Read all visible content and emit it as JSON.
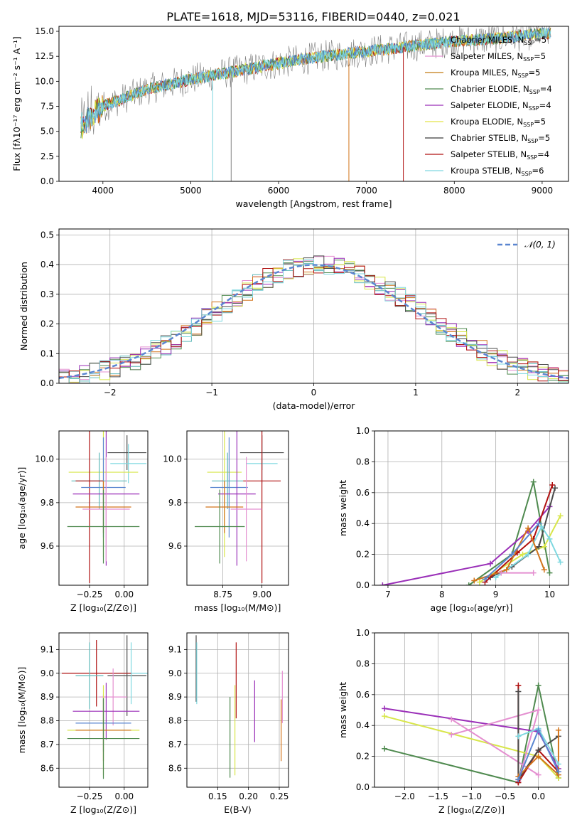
{
  "figure_title": "PLATE=1618, MJD=53116, FIBERID=0440, z=0.021",
  "legend_spectrum": [
    {
      "label": "Chabrier MILES, N",
      "sub": "SSP",
      "tail": "=5",
      "color": "#5fb9b9"
    },
    {
      "label": "Salpeter MILES, N",
      "sub": "SSP",
      "tail": "=5",
      "color": "#e48fd0"
    },
    {
      "label": "Kroupa MILES, N",
      "sub": "SSP",
      "tail": "=5",
      "color": "#c27a10"
    },
    {
      "label": "Chabrier ELODIE, N",
      "sub": "SSP",
      "tail": "=4",
      "color": "#4f8a4f"
    },
    {
      "label": "Salpeter ELODIE, N",
      "sub": "SSP",
      "tail": "=4",
      "color": "#9a2fb8"
    },
    {
      "label": "Kroupa ELODIE, N",
      "sub": "SSP",
      "tail": "=5",
      "color": "#e3e347"
    },
    {
      "label": "Chabrier STELIB, N",
      "sub": "SSP",
      "tail": "=5",
      "color": "#3a3a3a"
    },
    {
      "label": "Salpeter STELIB, N",
      "sub": "SSP",
      "tail": "=4",
      "color": "#b01010"
    },
    {
      "label": "Kroupa STELIB, N",
      "sub": "SSP",
      "tail": "=6",
      "color": "#7fd8e0"
    }
  ],
  "colors": [
    "#5fb9b9",
    "#e48fd0",
    "#d2741a",
    "#4f8a4f",
    "#9a2fb8",
    "#d8e64a",
    "#4a4a4a",
    "#b01010",
    "#7fd8e0",
    "#5a86d0"
  ],
  "chart_data": [
    {
      "id": "spectrum",
      "type": "line",
      "xlabel": "wavelength [Angstrom, rest frame]",
      "ylabel": "Flux [fλ10⁻¹⁷ erg cm⁻² s⁻¹ A⁻¹]",
      "xlim": [
        3500,
        9300
      ],
      "ylim": [
        0,
        15.5
      ],
      "xticks": [
        4000,
        5000,
        6000,
        7000,
        8000,
        9000
      ],
      "yticks": [
        0.0,
        2.5,
        5.0,
        7.5,
        10.0,
        12.5,
        15.0
      ],
      "trend_x": [
        3750,
        4000,
        4500,
        5000,
        5500,
        6000,
        6500,
        7000,
        7500,
        8000,
        8500,
        9000
      ],
      "trend_y": [
        5.5,
        7.5,
        9.2,
        10.2,
        11.0,
        11.8,
        12.5,
        13.0,
        13.5,
        14.0,
        14.3,
        14.8
      ],
      "grid": false
    },
    {
      "id": "residuals",
      "type": "histogram",
      "xlabel": "(data-model)/error",
      "ylabel": "Normed distribution",
      "xlim": [
        -2.5,
        2.5
      ],
      "ylim": [
        0,
        0.52
      ],
      "xticks": [
        -2,
        -1,
        0,
        1,
        2
      ],
      "yticks": [
        0.0,
        0.1,
        0.2,
        0.3,
        0.4,
        0.5
      ],
      "legend": "𝒩(0, 1)",
      "grid": true
    },
    {
      "id": "age_vs_Z",
      "type": "errorbar",
      "xlabel": "Z [log₁₀(Z/Z⊙)]",
      "ylabel": "age  [log₁₀(age/yr)]",
      "xlim": [
        -0.47,
        0.17
      ],
      "ylim": [
        9.42,
        10.13
      ],
      "xticks": [
        -0.25,
        0.0
      ],
      "xticklabels": [
        "−0.25",
        "0.00"
      ],
      "yticks": [
        9.6,
        9.8,
        10.0
      ],
      "points": [
        {
          "x": 0.02,
          "xe": 0.14,
          "y": 10.03,
          "ye": 0.08,
          "c": 6
        },
        {
          "x": 0.03,
          "xe": 0.13,
          "y": 9.98,
          "ye": 0.09,
          "c": 8
        },
        {
          "x": -0.15,
          "xe": 0.25,
          "y": 9.94,
          "ye": 0.39,
          "c": 5
        },
        {
          "x": -0.18,
          "xe": 0.2,
          "y": 9.9,
          "ye": 0.13,
          "c": 0
        },
        {
          "x": -0.25,
          "xe": 0.1,
          "y": 9.9,
          "ye": 0.47,
          "c": 7
        },
        {
          "x": -0.15,
          "xe": 0.16,
          "y": 9.87,
          "ye": 0.23,
          "c": 9
        },
        {
          "x": -0.13,
          "xe": 0.24,
          "y": 9.84,
          "ye": 0.33,
          "c": 4
        },
        {
          "x": -0.15,
          "xe": 0.2,
          "y": 9.78,
          "ye": 0.12,
          "c": 2
        },
        {
          "x": -0.13,
          "xe": 0.17,
          "y": 9.77,
          "ye": 0.24,
          "c": 1
        },
        {
          "x": -0.15,
          "xe": 0.26,
          "y": 9.69,
          "ye": 0.17,
          "c": 3
        }
      ]
    },
    {
      "id": "age_vs_mass",
      "type": "errorbar",
      "xlabel": "mass [log₁₀(M/M⊙)]",
      "ylabel": "",
      "xlim": [
        8.52,
        9.17
      ],
      "ylim": [
        9.42,
        10.13
      ],
      "xticks": [
        8.75,
        9.0
      ],
      "xticklabels": [
        "8.75",
        "9.00"
      ],
      "yticks": [
        9.6,
        9.8,
        10.0
      ],
      "points": [
        {
          "x": 9.0,
          "xe": 0.14,
          "y": 10.03,
          "ye": 0.08,
          "c": 6
        },
        {
          "x": 9.0,
          "xe": 0.1,
          "y": 9.98,
          "ye": 0.09,
          "c": 8
        },
        {
          "x": 8.76,
          "xe": 0.11,
          "y": 9.94,
          "ye": 0.39,
          "c": 5
        },
        {
          "x": 8.78,
          "xe": 0.1,
          "y": 9.9,
          "ye": 0.13,
          "c": 0
        },
        {
          "x": 9.0,
          "xe": 0.12,
          "y": 9.9,
          "ye": 0.47,
          "c": 7
        },
        {
          "x": 8.79,
          "xe": 0.12,
          "y": 9.87,
          "ye": 0.23,
          "c": 9
        },
        {
          "x": 8.84,
          "xe": 0.12,
          "y": 9.84,
          "ye": 0.33,
          "c": 4
        },
        {
          "x": 8.76,
          "xe": 0.12,
          "y": 9.78,
          "ye": 0.12,
          "c": 2
        },
        {
          "x": 8.9,
          "xe": 0.1,
          "y": 9.77,
          "ye": 0.24,
          "c": 1
        },
        {
          "x": 8.73,
          "xe": 0.16,
          "y": 9.69,
          "ye": 0.17,
          "c": 3
        }
      ]
    },
    {
      "id": "weight_vs_age",
      "type": "line",
      "xlabel": "age  [log₁₀(age/yr)]",
      "ylabel": "mass weight",
      "xlim": [
        6.75,
        10.35
      ],
      "ylim": [
        0,
        1.0
      ],
      "xticks": [
        7,
        8,
        9,
        10
      ],
      "yticks": [
        0.0,
        0.2,
        0.4,
        0.6,
        0.8,
        1.0
      ],
      "series": [
        {
          "c": 3,
          "x": [
            8.5,
            9.3,
            9.7,
            10.0
          ],
          "y": [
            0.0,
            0.2,
            0.67,
            0.08
          ]
        },
        {
          "c": 4,
          "x": [
            6.9,
            8.9,
            9.6,
            10.0
          ],
          "y": [
            0.0,
            0.14,
            0.35,
            0.51
          ]
        },
        {
          "c": 5,
          "x": [
            8.7,
            9.5,
            9.9,
            10.2
          ],
          "y": [
            0.02,
            0.2,
            0.25,
            0.45
          ]
        },
        {
          "c": 6,
          "x": [
            8.9,
            9.3,
            9.8,
            10.1
          ],
          "y": [
            0.05,
            0.12,
            0.25,
            0.63
          ]
        },
        {
          "c": 7,
          "x": [
            8.8,
            9.4,
            9.7,
            10.05
          ],
          "y": [
            0.02,
            0.21,
            0.3,
            0.65
          ]
        },
        {
          "c": 8,
          "x": [
            9.0,
            9.6,
            9.85,
            10.0,
            10.2
          ],
          "y": [
            0.05,
            0.2,
            0.38,
            0.3,
            0.15
          ]
        },
        {
          "c": 2,
          "x": [
            8.6,
            9.2,
            9.6,
            9.9
          ],
          "y": [
            0.03,
            0.1,
            0.37,
            0.1
          ]
        },
        {
          "c": 1,
          "x": [
            9.1,
            9.7
          ],
          "y": [
            0.08,
            0.08
          ]
        },
        {
          "c": 9,
          "x": [
            8.8,
            9.3,
            9.8
          ],
          "y": [
            0.04,
            0.2,
            0.4
          ]
        }
      ]
    },
    {
      "id": "mass_vs_Z",
      "type": "errorbar",
      "xlabel": "Z [log₁₀(Z/Z⊙)]",
      "ylabel": "mass [log₁₀(M/M⊙)]",
      "xlim": [
        -0.47,
        0.17
      ],
      "ylim": [
        8.52,
        9.17
      ],
      "xticks": [
        -0.25,
        0.0
      ],
      "xticklabels": [
        "−0.25",
        "0.00"
      ],
      "yticks": [
        8.6,
        8.7,
        8.8,
        8.9,
        9.0,
        9.1
      ],
      "points": [
        {
          "x": 0.02,
          "xe": 0.14,
          "y": 8.99,
          "ye": 0.17,
          "c": 6
        },
        {
          "x": 0.05,
          "xe": 0.13,
          "y": 9.0,
          "ye": 0.13,
          "c": 8
        },
        {
          "x": -0.2,
          "xe": 0.25,
          "y": 9.0,
          "ye": 0.14,
          "c": 7
        },
        {
          "x": -0.08,
          "xe": 0.1,
          "y": 8.9,
          "ye": 0.12,
          "c": 1
        },
        {
          "x": -0.13,
          "xe": 0.24,
          "y": 8.84,
          "ye": 0.12,
          "c": 4
        },
        {
          "x": -0.15,
          "xe": 0.2,
          "y": 8.79,
          "ye": 0.12,
          "c": 9
        },
        {
          "x": -0.15,
          "xe": 0.26,
          "y": 8.76,
          "ye": 0.19,
          "c": 5
        },
        {
          "x": -0.15,
          "xe": 0.2,
          "y": 8.76,
          "ye": 0.13,
          "c": 2
        },
        {
          "x": -0.15,
          "xe": 0.26,
          "y": 8.725,
          "ye": 0.17,
          "c": 3
        },
        {
          "x": -0.25,
          "xe": 0.1,
          "y": 8.99,
          "ye": 0.14,
          "c": 0
        }
      ]
    },
    {
      "id": "mass_vs_ebv",
      "type": "errorbar",
      "xlabel": "E(B-V)",
      "ylabel": "",
      "xlim": [
        0.1,
        0.265
      ],
      "ylim": [
        8.52,
        9.17
      ],
      "xticks": [
        0.15,
        0.2,
        0.25
      ],
      "xticklabels": [
        "0.15",
        "0.20",
        "0.25"
      ],
      "yticks": [
        8.6,
        8.7,
        8.8,
        8.9,
        9.0,
        9.1
      ],
      "points": [
        {
          "x": 0.115,
          "xe": 0,
          "y": 9.02,
          "ye": 0.14,
          "c": 6
        },
        {
          "x": 0.116,
          "xe": 0,
          "y": 9.0,
          "ye": 0.13,
          "c": 8
        },
        {
          "x": 0.17,
          "xe": 0,
          "y": 8.73,
          "ye": 0.17,
          "c": 3
        },
        {
          "x": 0.178,
          "xe": 0,
          "y": 8.76,
          "ye": 0.19,
          "c": 5
        },
        {
          "x": 0.18,
          "xe": 0,
          "y": 8.97,
          "ye": 0.16,
          "c": 7
        },
        {
          "x": 0.21,
          "xe": 0,
          "y": 8.84,
          "ye": 0.13,
          "c": 4
        },
        {
          "x": 0.253,
          "xe": 0,
          "y": 8.76,
          "ye": 0.13,
          "c": 2
        },
        {
          "x": 0.255,
          "xe": 0,
          "y": 8.9,
          "ye": 0.11,
          "c": 1
        }
      ]
    },
    {
      "id": "weight_vs_Z",
      "type": "line",
      "xlabel": "Z [log₁₀(Z/Z⊙)]",
      "ylabel": "mass weight",
      "xlim": [
        -2.45,
        0.45
      ],
      "ylim": [
        0,
        1.0
      ],
      "xticks": [
        -2.0,
        -1.5,
        -1.0,
        -0.5,
        0.0
      ],
      "xticklabels": [
        "−2.0",
        "−1.5",
        "−1.0",
        "−0.5",
        "0.0"
      ],
      "yticks": [
        0.0,
        0.2,
        0.4,
        0.6,
        0.8,
        1.0
      ],
      "series": [
        {
          "c": 3,
          "x": [
            -2.3,
            -0.3,
            0.0,
            0.3
          ],
          "y": [
            0.25,
            0.03,
            0.66,
            0.06
          ]
        },
        {
          "c": 4,
          "x": [
            -2.3,
            0.0,
            0.3
          ],
          "y": [
            0.51,
            0.36,
            0.12
          ]
        },
        {
          "c": 5,
          "x": [
            -2.3,
            0.0,
            0.3
          ],
          "y": [
            0.46,
            0.2,
            0.06
          ]
        },
        {
          "c": 1,
          "x": [
            -1.3,
            0.0
          ],
          "y": [
            0.44,
            0.08
          ]
        },
        {
          "c": 1,
          "x": [
            -1.3,
            0.0,
            -0.3
          ],
          "y": [
            0.34,
            0.5,
            0.04
          ]
        },
        {
          "c": 7,
          "x": [
            -0.3,
            -0.3,
            0.0,
            0.3
          ],
          "y": [
            0.66,
            0.03,
            0.24,
            0.1
          ]
        },
        {
          "c": 6,
          "x": [
            -0.3,
            -0.3,
            0.0,
            0.3
          ],
          "y": [
            0.62,
            0.05,
            0.24,
            0.33
          ]
        },
        {
          "c": 2,
          "x": [
            -0.3,
            0.0,
            0.3,
            0.3
          ],
          "y": [
            0.07,
            0.2,
            0.08,
            0.37
          ]
        },
        {
          "c": 8,
          "x": [
            -0.3,
            0.0,
            0.3
          ],
          "y": [
            0.33,
            0.38,
            0.15
          ]
        },
        {
          "c": 9,
          "x": [
            -0.3,
            0.0,
            0.3
          ],
          "y": [
            0.05,
            0.37,
            0.1
          ]
        }
      ]
    }
  ]
}
